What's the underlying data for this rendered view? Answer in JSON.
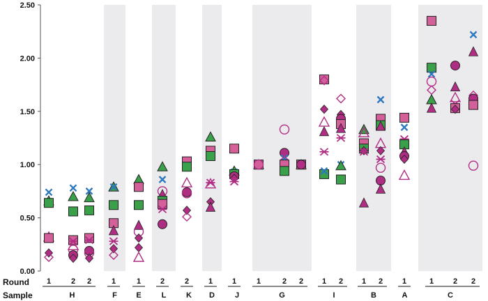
{
  "chart_data": {
    "type": "scatter",
    "ylim": [
      0,
      2.5
    ],
    "yticks": [
      "0.00",
      "0.50",
      "1.00",
      "1.50",
      "2.00",
      "2.50"
    ],
    "row_labels": {
      "round": "Round",
      "sample": "Sample"
    },
    "colors": {
      "green": "#3aa04a",
      "pink": "#d4609a",
      "magenta": "#b02d84",
      "blue": "#2e78bd",
      "shade": "#ebebee"
    },
    "samples": [
      {
        "name": "H",
        "shaded": false,
        "rounds": [
          "1",
          "2",
          "2"
        ]
      },
      {
        "name": "F",
        "shaded": true,
        "rounds": [
          "1"
        ]
      },
      {
        "name": "E",
        "shaded": false,
        "rounds": [
          "1"
        ]
      },
      {
        "name": "L",
        "shaded": true,
        "rounds": [
          "2"
        ]
      },
      {
        "name": "K",
        "shaded": false,
        "rounds": [
          "2"
        ]
      },
      {
        "name": "D",
        "shaded": true,
        "rounds": [
          "1"
        ]
      },
      {
        "name": "J",
        "shaded": false,
        "rounds": [
          "1"
        ]
      },
      {
        "name": "G",
        "shaded": true,
        "rounds": [
          "1",
          "2",
          "2"
        ]
      },
      {
        "name": "I",
        "shaded": false,
        "rounds": [
          "1",
          "2"
        ]
      },
      {
        "name": "B",
        "shaded": true,
        "rounds": [
          "1",
          "2"
        ]
      },
      {
        "name": "A",
        "shaded": false,
        "rounds": [
          "1"
        ]
      },
      {
        "name": "C",
        "shaded": true,
        "rounds": [
          "1",
          "2",
          "2"
        ]
      }
    ],
    "columns": [
      {
        "sample": "H",
        "round": "1",
        "points": [
          {
            "m": "x",
            "v": 0.74
          },
          {
            "m": "triangle",
            "v": 0.66
          },
          {
            "m": "square",
            "v": 0.64
          },
          {
            "m": "tri-open",
            "v": 0.32
          },
          {
            "m": "sq-pink",
            "v": 0.31
          },
          {
            "m": "diamond",
            "v": 0.17
          },
          {
            "m": "dia-open",
            "v": 0.13
          }
        ]
      },
      {
        "sample": "H",
        "round": "2",
        "points": [
          {
            "m": "x",
            "v": 0.78
          },
          {
            "m": "triangle",
            "v": 0.7
          },
          {
            "m": "square",
            "v": 0.56
          },
          {
            "m": "sq-pink",
            "v": 0.29
          },
          {
            "m": "star",
            "v": 0.28
          },
          {
            "m": "tri-open",
            "v": 0.24
          },
          {
            "m": "circ-open",
            "v": 0.2
          },
          {
            "m": "circle",
            "v": 0.15
          },
          {
            "m": "diamond",
            "v": 0.12
          }
        ]
      },
      {
        "sample": "H",
        "round": "2",
        "points": [
          {
            "m": "x",
            "v": 0.75
          },
          {
            "m": "triangle",
            "v": 0.69
          },
          {
            "m": "square",
            "v": 0.57
          },
          {
            "m": "sq-pink",
            "v": 0.31
          },
          {
            "m": "star",
            "v": 0.29
          },
          {
            "m": "circle",
            "v": 0.19
          },
          {
            "m": "circ-open",
            "v": 0.17
          },
          {
            "m": "diamond",
            "v": 0.12
          }
        ]
      },
      {
        "sample": "F",
        "round": "1",
        "points": [
          {
            "m": "triangle",
            "v": 0.79
          },
          {
            "m": "x",
            "v": 0.79
          },
          {
            "m": "square",
            "v": 0.62
          },
          {
            "m": "sq-pink",
            "v": 0.45
          },
          {
            "m": "tri-mag",
            "v": 0.38
          },
          {
            "m": "star",
            "v": 0.28
          },
          {
            "m": "diamond",
            "v": 0.21
          },
          {
            "m": "dia-open",
            "v": 0.15
          }
        ]
      },
      {
        "sample": "E",
        "round": "1",
        "points": [
          {
            "m": "triangle",
            "v": 0.86
          },
          {
            "m": "sq-pink",
            "v": 0.79
          },
          {
            "m": "square",
            "v": 0.62
          },
          {
            "m": "tri-mag",
            "v": 0.43
          },
          {
            "m": "circ-open",
            "v": 0.37
          },
          {
            "m": "diamond",
            "v": 0.31
          },
          {
            "m": "diamond",
            "v": 0.22
          },
          {
            "m": "tri-open",
            "v": 0.13
          }
        ]
      },
      {
        "sample": "L",
        "round": "2",
        "points": [
          {
            "m": "triangle",
            "v": 0.98
          },
          {
            "m": "x",
            "v": 0.86
          },
          {
            "m": "circ-open",
            "v": 0.75
          },
          {
            "m": "tri-mag",
            "v": 0.72
          },
          {
            "m": "square",
            "v": 0.66
          },
          {
            "m": "sq-pink",
            "v": 0.63
          },
          {
            "m": "star",
            "v": 0.58
          },
          {
            "m": "circle",
            "v": 0.44
          }
        ]
      },
      {
        "sample": "K",
        "round": "2",
        "points": [
          {
            "m": "sq-pink",
            "v": 1.03
          },
          {
            "m": "square",
            "v": 0.98
          },
          {
            "m": "tri-open",
            "v": 0.83
          },
          {
            "m": "circle",
            "v": 0.74
          },
          {
            "m": "circ-open",
            "v": 0.73
          },
          {
            "m": "diamond",
            "v": 0.57
          },
          {
            "m": "dia-open",
            "v": 0.51
          }
        ]
      },
      {
        "sample": "D",
        "round": "1",
        "points": [
          {
            "m": "triangle",
            "v": 1.26
          },
          {
            "m": "sq-pink",
            "v": 1.13
          },
          {
            "m": "x",
            "v": 1.09
          },
          {
            "m": "square",
            "v": 1.08
          },
          {
            "m": "star",
            "v": 0.83
          },
          {
            "m": "tri-open",
            "v": 0.82
          },
          {
            "m": "diamond",
            "v": 0.65
          },
          {
            "m": "tri-mag",
            "v": 0.6
          }
        ]
      },
      {
        "sample": "J",
        "round": "1",
        "points": [
          {
            "m": "sq-pink",
            "v": 1.15
          },
          {
            "m": "triangle",
            "v": 0.94
          },
          {
            "m": "x",
            "v": 0.93
          },
          {
            "m": "square",
            "v": 0.91
          },
          {
            "m": "circle",
            "v": 0.89
          },
          {
            "m": "diamond",
            "v": 0.87
          },
          {
            "m": "star",
            "v": 0.84
          }
        ]
      },
      {
        "sample": "G",
        "round": "1",
        "points": [
          {
            "m": "square",
            "v": 1.0
          },
          {
            "m": "triangle",
            "v": 1.0
          },
          {
            "m": "x",
            "v": 1.0
          },
          {
            "m": "circle",
            "v": 1.0
          },
          {
            "m": "diamond",
            "v": 1.0
          },
          {
            "m": "sq-pink",
            "v": 1.0
          },
          {
            "m": "circ-open",
            "v": 1.0
          }
        ]
      },
      {
        "sample": "G",
        "round": "2",
        "points": [
          {
            "m": "circ-open",
            "v": 1.33
          },
          {
            "m": "circle",
            "v": 1.11
          },
          {
            "m": "x",
            "v": 1.06
          },
          {
            "m": "dia-open",
            "v": 1.04
          },
          {
            "m": "star",
            "v": 1.01
          },
          {
            "m": "sq-pink",
            "v": 1.0
          },
          {
            "m": "square",
            "v": 0.94
          }
        ]
      },
      {
        "sample": "G",
        "round": "2",
        "points": [
          {
            "m": "square",
            "v": 1.0
          },
          {
            "m": "triangle",
            "v": 1.0
          },
          {
            "m": "sq-pink",
            "v": 1.0
          },
          {
            "m": "diamond",
            "v": 1.0
          },
          {
            "m": "circle",
            "v": 1.0
          }
        ]
      },
      {
        "sample": "I",
        "round": "1",
        "points": [
          {
            "m": "sq-pink",
            "v": 1.8
          },
          {
            "m": "dia-open",
            "v": 1.79
          },
          {
            "m": "diamond",
            "v": 1.52
          },
          {
            "m": "tri-open",
            "v": 1.4
          },
          {
            "m": "tri-mag",
            "v": 1.31
          },
          {
            "m": "star",
            "v": 1.12
          },
          {
            "m": "square",
            "v": 0.91
          },
          {
            "m": "x",
            "v": 0.94
          }
        ]
      },
      {
        "sample": "I",
        "round": "2",
        "points": [
          {
            "m": "dia-open",
            "v": 1.62
          },
          {
            "m": "diamond",
            "v": 1.47
          },
          {
            "m": "circle",
            "v": 1.43
          },
          {
            "m": "sq-pink",
            "v": 1.38
          },
          {
            "m": "tri-mag",
            "v": 1.34
          },
          {
            "m": "star",
            "v": 1.25
          },
          {
            "m": "x",
            "v": 1.0
          },
          {
            "m": "triangle",
            "v": 0.99
          },
          {
            "m": "square",
            "v": 0.86
          }
        ]
      },
      {
        "sample": "B",
        "round": "1",
        "points": [
          {
            "m": "triangle",
            "v": 1.33
          },
          {
            "m": "tri-open",
            "v": 1.3
          },
          {
            "m": "sq-pink",
            "v": 1.2
          },
          {
            "m": "square",
            "v": 1.15
          },
          {
            "m": "diamond",
            "v": 1.13
          },
          {
            "m": "star",
            "v": 1.12
          },
          {
            "m": "tri-mag",
            "v": 0.64
          }
        ]
      },
      {
        "sample": "B",
        "round": "2",
        "points": [
          {
            "m": "x",
            "v": 1.61
          },
          {
            "m": "sq-pink",
            "v": 1.43
          },
          {
            "m": "square",
            "v": 1.37
          },
          {
            "m": "tri-mag",
            "v": 1.36
          },
          {
            "m": "tri-open",
            "v": 1.2
          },
          {
            "m": "diamond",
            "v": 1.13
          },
          {
            "m": "star",
            "v": 1.05
          },
          {
            "m": "circ-open",
            "v": 0.97
          },
          {
            "m": "circle",
            "v": 0.85
          },
          {
            "m": "tri-mag",
            "v": 0.77
          }
        ]
      },
      {
        "sample": "A",
        "round": "1",
        "points": [
          {
            "m": "sq-pink",
            "v": 1.44
          },
          {
            "m": "x",
            "v": 1.35
          },
          {
            "m": "star",
            "v": 1.24
          },
          {
            "m": "square",
            "v": 1.19
          },
          {
            "m": "tri-mag",
            "v": 1.12
          },
          {
            "m": "circle",
            "v": 1.08
          },
          {
            "m": "diamond",
            "v": 1.05
          },
          {
            "m": "tri-open",
            "v": 0.9
          }
        ]
      },
      {
        "sample": "C",
        "round": "1",
        "points": [
          {
            "m": "sq-pink",
            "v": 2.35
          },
          {
            "m": "square",
            "v": 1.91
          },
          {
            "m": "x",
            "v": 1.85
          },
          {
            "m": "circ-open",
            "v": 1.78
          },
          {
            "m": "dia-open",
            "v": 1.7
          },
          {
            "m": "triangle",
            "v": 1.61
          },
          {
            "m": "tri-mag",
            "v": 1.53
          }
        ]
      },
      {
        "sample": "C",
        "round": "2",
        "points": [
          {
            "m": "circle",
            "v": 1.93
          },
          {
            "m": "tri-mag",
            "v": 1.73
          },
          {
            "m": "tri-open",
            "v": 1.63
          },
          {
            "m": "star",
            "v": 1.57
          },
          {
            "m": "sq-pink",
            "v": 1.53
          },
          {
            "m": "diamond",
            "v": 1.52
          }
        ]
      },
      {
        "sample": "C",
        "round": "2",
        "points": [
          {
            "m": "x",
            "v": 2.22
          },
          {
            "m": "tri-mag",
            "v": 2.06
          },
          {
            "m": "dia-open",
            "v": 1.65
          },
          {
            "m": "circle",
            "v": 1.62
          },
          {
            "m": "star",
            "v": 1.59
          },
          {
            "m": "sq-pink",
            "v": 1.56
          },
          {
            "m": "circ-open",
            "v": 0.99
          }
        ]
      }
    ]
  }
}
